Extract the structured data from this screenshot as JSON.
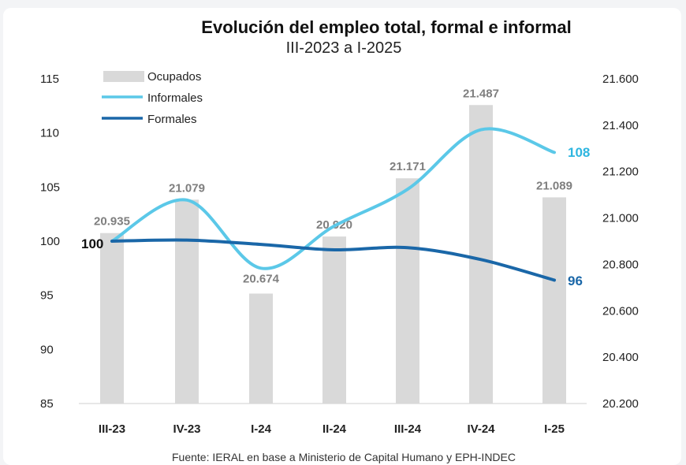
{
  "chart_data": {
    "type": "bar+line",
    "title": "Evolución del empleo total, formal e informal",
    "subtitle": "III-2023 a I-2025",
    "categories": [
      "III-23",
      "IV-23",
      "I-24",
      "II-24",
      "III-24",
      "IV-24",
      "I-25"
    ],
    "bars": {
      "name": "Ocupados",
      "axis": "right",
      "values": [
        20935,
        21079,
        20674,
        20920,
        21171,
        21487,
        21089
      ],
      "labels": [
        "20.935",
        "21.079",
        "20.674",
        "20.920",
        "21.171",
        "21.487",
        "21.089"
      ],
      "color": "#d9d9d9"
    },
    "series": [
      {
        "name": "Informales",
        "axis": "left",
        "values": [
          100,
          103.8,
          97.5,
          101.4,
          104.8,
          110.3,
          108.2
        ],
        "color": "#5bc8e8",
        "end_label": "108"
      },
      {
        "name": "Formales",
        "axis": "left",
        "values": [
          100,
          100.1,
          99.7,
          99.2,
          99.4,
          98.3,
          96.4
        ],
        "color": "#1a67a8",
        "end_label": "96"
      }
    ],
    "start_label": "100",
    "y_left": {
      "ylim": [
        85,
        115
      ],
      "ticks": [
        "85",
        "90",
        "95",
        "100",
        "105",
        "110",
        "115"
      ]
    },
    "y_right": {
      "ylim": [
        20200,
        21600
      ],
      "ticks": [
        "20.200",
        "20.400",
        "20.600",
        "20.800",
        "21.000",
        "21.200",
        "21.400",
        "21.600"
      ]
    },
    "legend": {
      "position": "top-left",
      "items": [
        "Ocupados",
        "Informales",
        "Formales"
      ]
    },
    "source": "Fuente: IERAL en base a Ministerio de Capital Humano y EPH-INDEC"
  }
}
